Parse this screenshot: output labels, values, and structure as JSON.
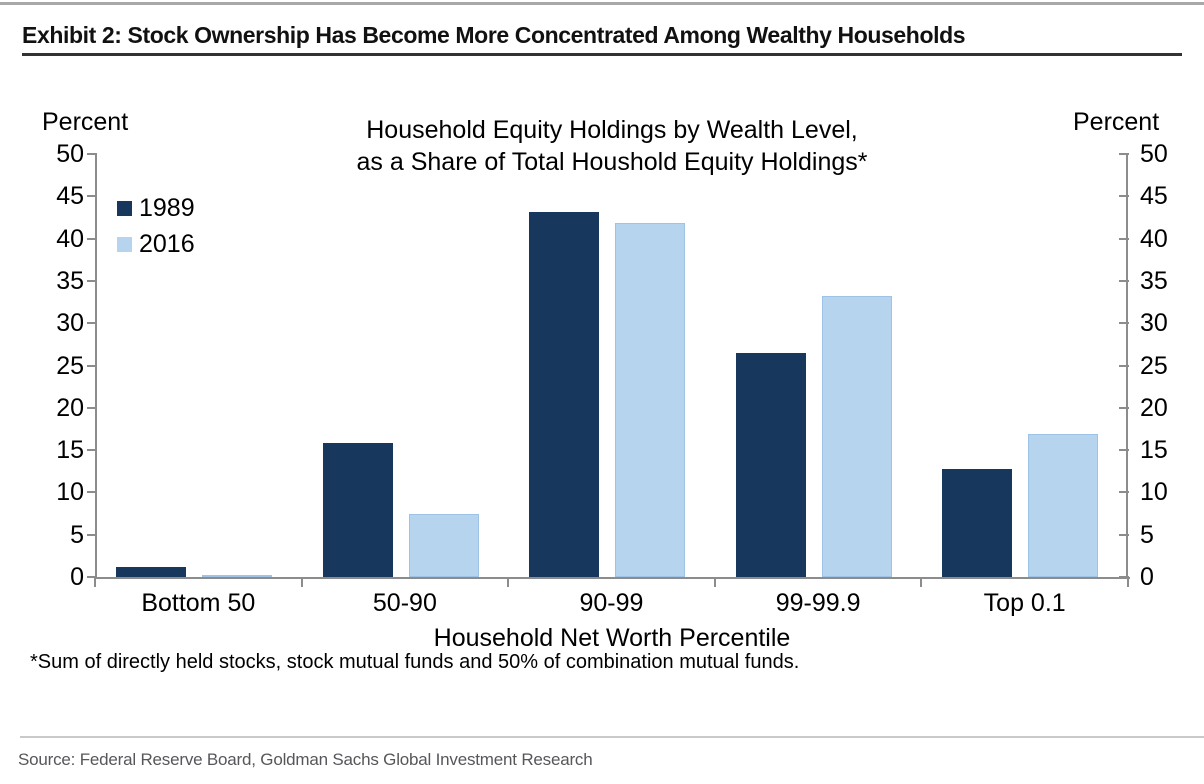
{
  "page": {
    "exhibit_title": "Exhibit 2: Stock Ownership Has Become More Concentrated Among Wealthy Households",
    "footnote": "*Sum of directly held stocks, stock mutual funds and 50% of combination mutual funds.",
    "source_line": "Source: Federal Reserve Board, Goldman Sachs Global Investment Research"
  },
  "chart_data": {
    "type": "bar",
    "title": "Household Equity Holdings by Wealth Level, as a Share of Total Houshold Equity Holdings*",
    "title_lines": [
      "Household Equity Holdings by Wealth Level,",
      "as a Share of Total Houshold Equity Holdings*"
    ],
    "xlabel": "Household Net Worth Percentile",
    "ylabel_left": "Percent",
    "ylabel_right": "Percent",
    "categories": [
      "Bottom 50",
      "50-90",
      "90-99",
      "99-99.9",
      "Top 0.1"
    ],
    "series": [
      {
        "name": "1989",
        "color": "#17375C",
        "values": [
          1.2,
          15.8,
          43.2,
          26.5,
          12.8
        ]
      },
      {
        "name": "2016",
        "color": "#B7D4EE",
        "border_color": "#9DC3E6",
        "values": [
          0.2,
          7.5,
          41.9,
          33.2,
          16.9
        ]
      }
    ],
    "ylim": [
      0,
      50
    ],
    "ytick_step": 5,
    "axis_color": "#8C8C8C",
    "grid": false,
    "legend_position": "top-left"
  }
}
